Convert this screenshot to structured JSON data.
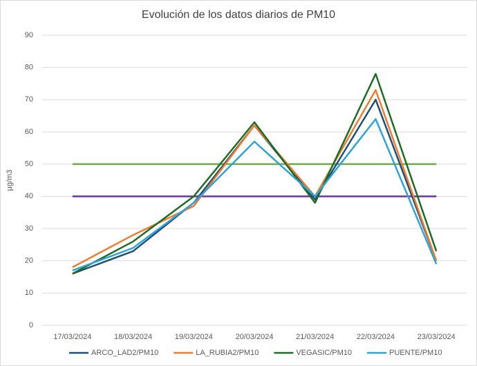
{
  "chart_data": {
    "type": "line",
    "title": "Evolución de los datos diarios de PM10",
    "y_label": "µg/m3",
    "categories": [
      "17/03/2024",
      "18/03/2024",
      "19/03/2024",
      "20/03/2024",
      "21/03/2024",
      "22/03/2024",
      "23/03/2024"
    ],
    "series": [
      {
        "name": "ARCO_LAD2/PM10",
        "color": "#1f4e79",
        "values": [
          16,
          23,
          38,
          62,
          39,
          70,
          20
        ]
      },
      {
        "name": "LA_RUBIA2/PM10",
        "color": "#ed7d31",
        "values": [
          18,
          28,
          37,
          62,
          40,
          73,
          20
        ]
      },
      {
        "name": "VEGASIC/PM10",
        "color": "#1e6b24",
        "values": [
          16,
          26,
          40,
          63,
          38,
          78,
          23
        ]
      },
      {
        "name": "PUENTE/PM10",
        "color": "#2ea3d6",
        "values": [
          17,
          24,
          38,
          57,
          40,
          64,
          19
        ]
      }
    ],
    "reference_lines": [
      {
        "value": 50,
        "color": "#70ad47"
      },
      {
        "value": 40,
        "color": "#7030a0"
      }
    ],
    "ylim": [
      0,
      90
    ],
    "yticks": [
      0,
      10,
      20,
      30,
      40,
      50,
      60,
      70,
      80,
      90
    ],
    "grid": true,
    "legend": "bottom"
  }
}
